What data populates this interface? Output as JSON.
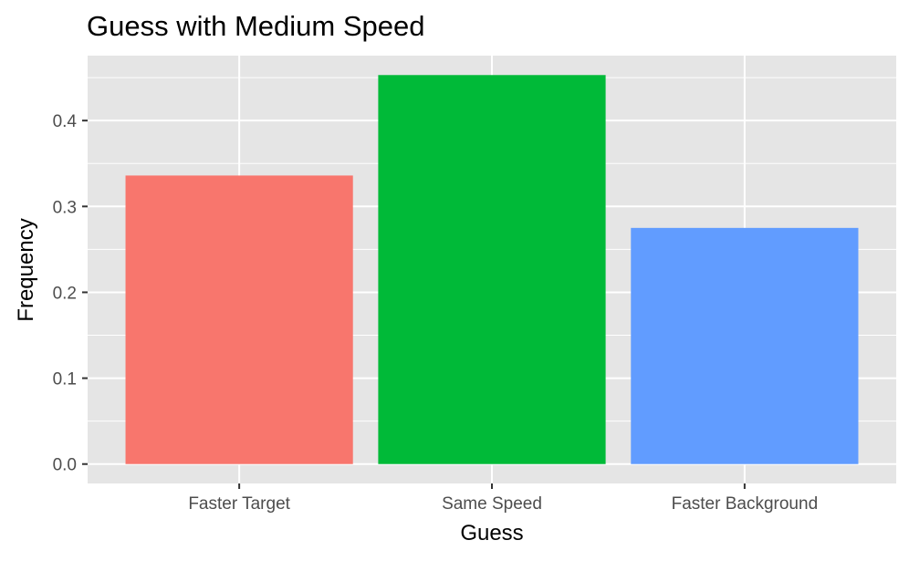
{
  "chart_data": {
    "type": "bar",
    "title": "Guess with Medium Speed",
    "xlabel": "Guess",
    "ylabel": "Frequency",
    "categories": [
      "Faster Target",
      "Same Speed",
      "Faster Background"
    ],
    "values": [
      0.336,
      0.453,
      0.275
    ],
    "colors": [
      "#F8766D",
      "#00BA38",
      "#619CFF"
    ],
    "ylim": [
      -0.0226,
      0.4756
    ],
    "yticks": [
      0.0,
      0.1,
      0.2,
      0.3,
      0.4
    ],
    "ytick_labels": [
      "0.0",
      "0.1",
      "0.2",
      "0.3",
      "0.4"
    ],
    "grid": true,
    "panel_background": "#E5E5E5",
    "legend": "none"
  }
}
